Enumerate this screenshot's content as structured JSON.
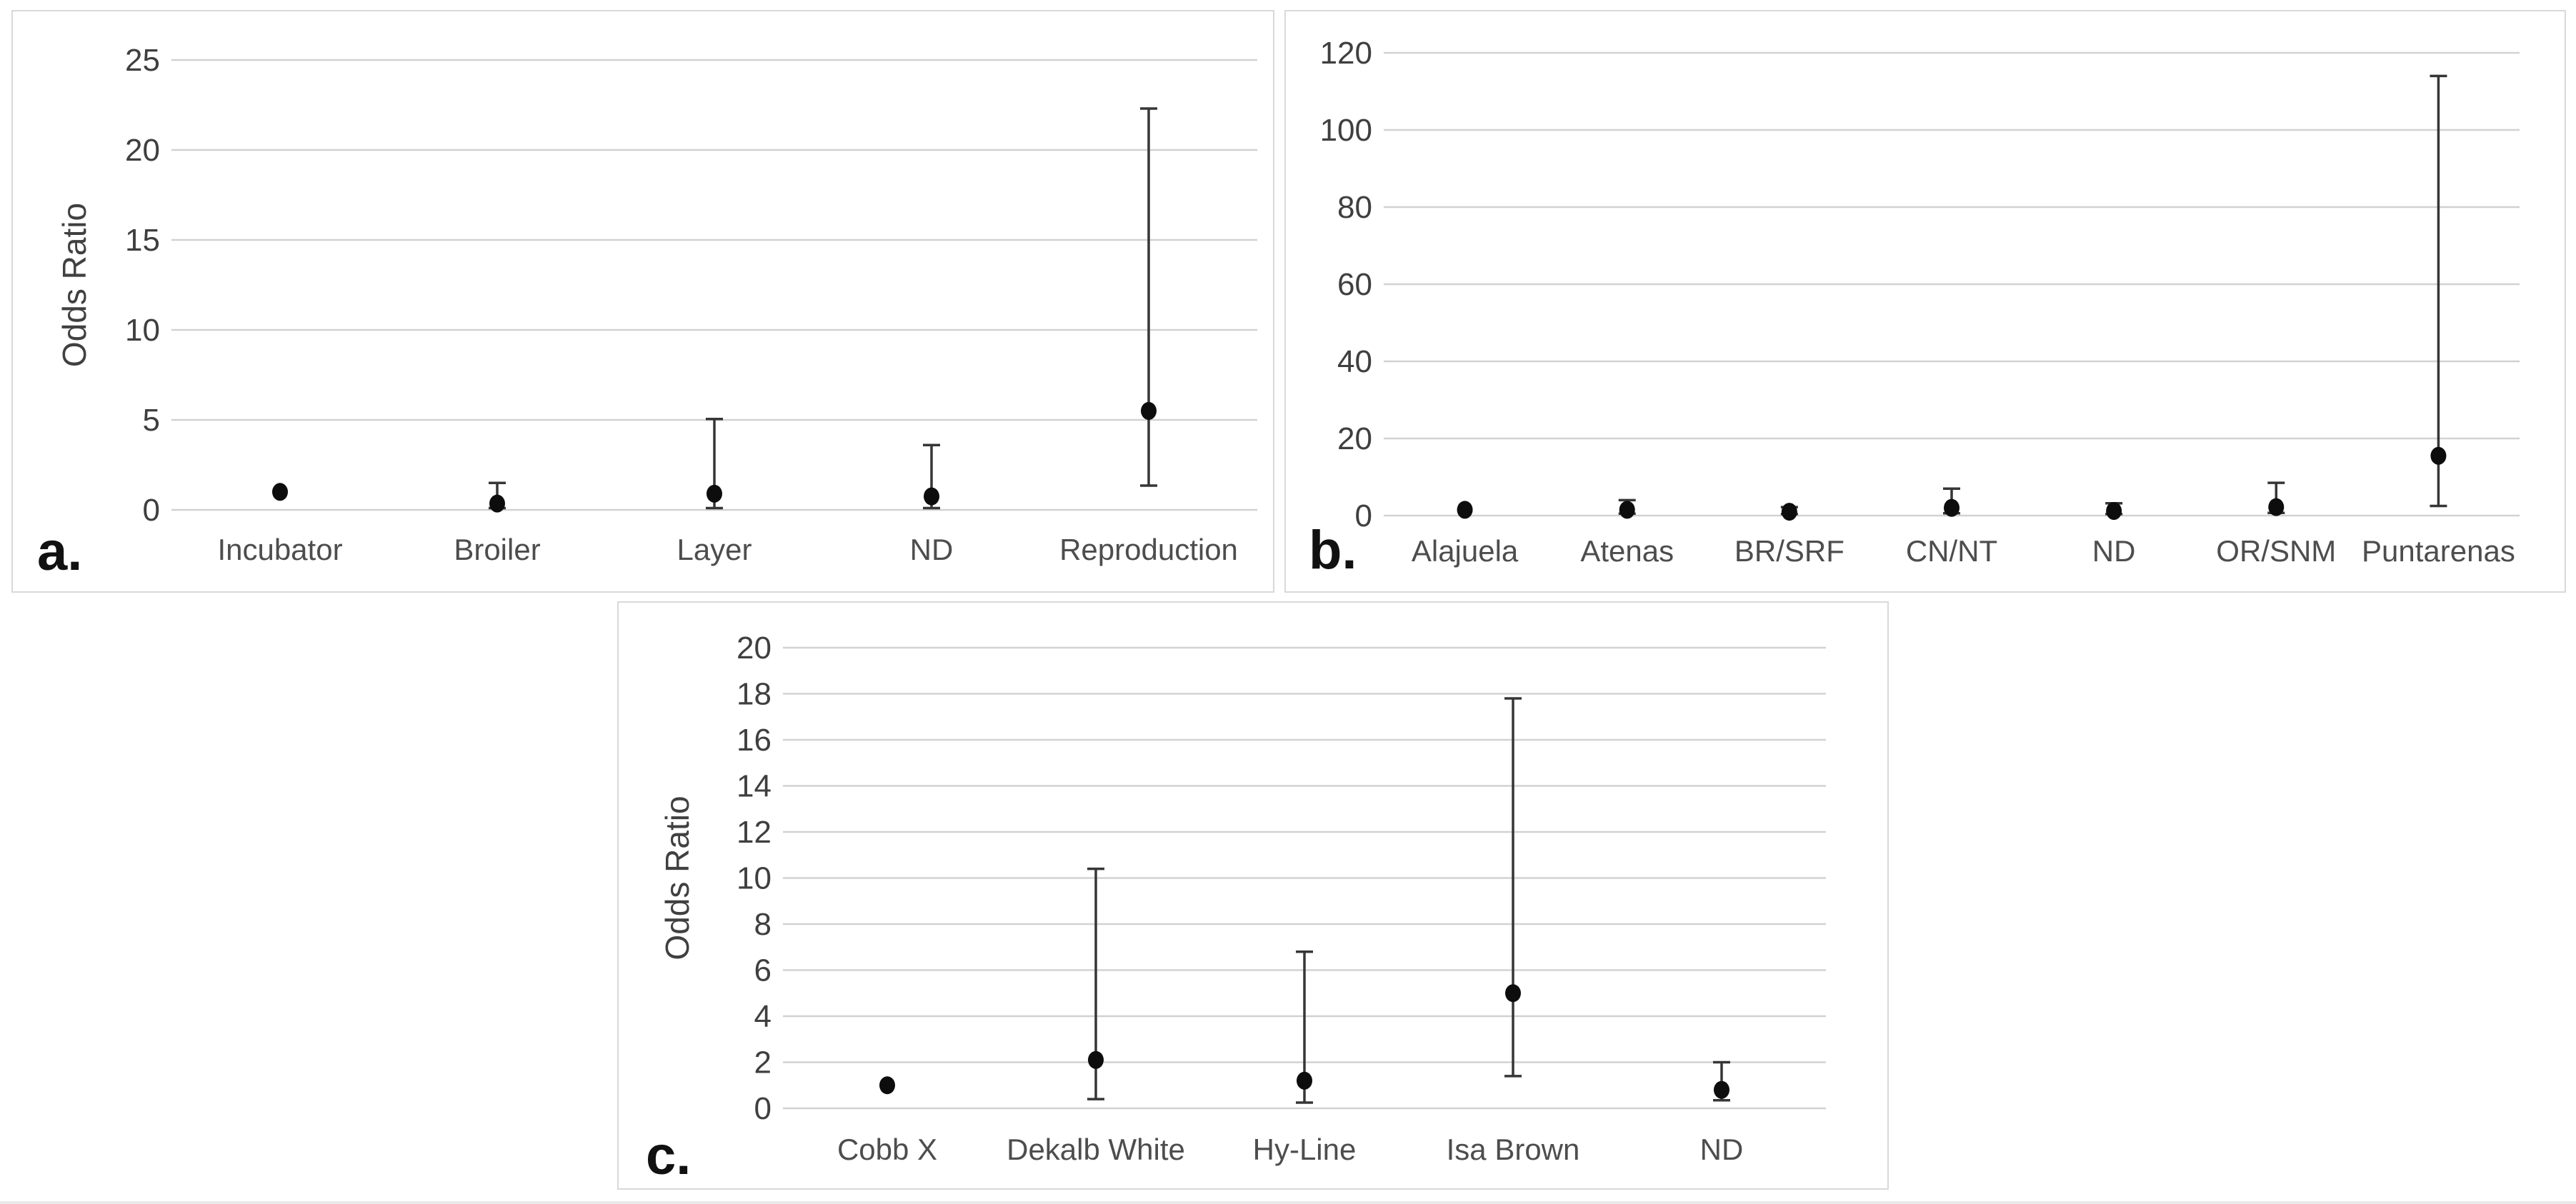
{
  "page": {
    "background_color": "#ffffff",
    "edge_color": "#eaeaea"
  },
  "colors": {
    "panel_border": "#d9d9d9",
    "gridline": "#d2d2d2",
    "tick_label": "#3f3f3f",
    "category_label": "#4d4d4d",
    "axis_title": "#404040",
    "panel_letter": "#111111",
    "marker": "#0d0d0d",
    "error_bar": "#363636"
  },
  "chart_data": [
    {
      "id": "a",
      "type": "scatter",
      "panel_letter": "a.",
      "title": "",
      "xlabel": "",
      "ylabel": "Odds Ratio",
      "ylim": [
        0,
        25
      ],
      "ytick_step": 5,
      "ytick_labels": [
        "0",
        "5",
        "10",
        "15",
        "20",
        "25"
      ],
      "grid": true,
      "legend": false,
      "categories": [
        "Incubator",
        "Broiler",
        "Layer",
        "ND",
        "Reproduction"
      ],
      "points": [
        {
          "category": "Incubator",
          "odds_ratio": 1.0,
          "ci_low": null,
          "ci_high": null
        },
        {
          "category": "Broiler",
          "odds_ratio": 0.35,
          "ci_low": 0.1,
          "ci_high": 1.5
        },
        {
          "category": "Layer",
          "odds_ratio": 0.9,
          "ci_low": 0.1,
          "ci_high": 5.05
        },
        {
          "category": "ND",
          "odds_ratio": 0.75,
          "ci_low": 0.1,
          "ci_high": 3.6
        },
        {
          "category": "Reproduction",
          "odds_ratio": 5.5,
          "ci_low": 1.35,
          "ci_high": 22.3
        }
      ]
    },
    {
      "id": "b",
      "type": "scatter",
      "panel_letter": "b.",
      "title": "",
      "xlabel": "",
      "ylabel": "",
      "ylim": [
        0,
        120
      ],
      "ytick_step": 20,
      "ytick_labels": [
        "0",
        "20",
        "40",
        "60",
        "80",
        "100",
        "120"
      ],
      "grid": true,
      "legend": false,
      "categories": [
        "Alajuela",
        "Atenas",
        "BR/SRF",
        "CN/NT",
        "ND",
        "OR/SNM",
        "Puntarenas"
      ],
      "points": [
        {
          "category": "Alajuela",
          "odds_ratio": 1.5,
          "ci_low": null,
          "ci_high": null
        },
        {
          "category": "Atenas",
          "odds_ratio": 1.5,
          "ci_low": 0.5,
          "ci_high": 4.0
        },
        {
          "category": "BR/SRF",
          "odds_ratio": 1.0,
          "ci_low": 0.4,
          "ci_high": 2.2
        },
        {
          "category": "CN/NT",
          "odds_ratio": 2.0,
          "ci_low": 0.6,
          "ci_high": 7.0
        },
        {
          "category": "ND",
          "odds_ratio": 1.2,
          "ci_low": 0.4,
          "ci_high": 3.2
        },
        {
          "category": "OR/SNM",
          "odds_ratio": 2.2,
          "ci_low": 0.7,
          "ci_high": 8.5
        },
        {
          "category": "Puntarenas",
          "odds_ratio": 15.5,
          "ci_low": 2.5,
          "ci_high": 114.0
        }
      ]
    },
    {
      "id": "c",
      "type": "scatter",
      "panel_letter": "c.",
      "title": "",
      "xlabel": "",
      "ylabel": "Odds Ratio",
      "ylim": [
        0,
        20
      ],
      "ytick_step": 2,
      "ytick_labels": [
        "0",
        "2",
        "4",
        "6",
        "8",
        "10",
        "12",
        "14",
        "16",
        "18",
        "20"
      ],
      "grid": true,
      "legend": false,
      "categories": [
        "Cobb X",
        "Dekalb White",
        "Hy-Line",
        "Isa Brown",
        "ND"
      ],
      "points": [
        {
          "category": "Cobb X",
          "odds_ratio": 1.0,
          "ci_low": null,
          "ci_high": null
        },
        {
          "category": "Dekalb White",
          "odds_ratio": 2.1,
          "ci_low": 0.4,
          "ci_high": 10.4
        },
        {
          "category": "Hy-Line",
          "odds_ratio": 1.2,
          "ci_low": 0.25,
          "ci_high": 6.8
        },
        {
          "category": "Isa Brown",
          "odds_ratio": 5.0,
          "ci_low": 1.4,
          "ci_high": 17.8
        },
        {
          "category": "ND",
          "odds_ratio": 0.8,
          "ci_low": 0.35,
          "ci_high": 2.0
        }
      ]
    }
  ]
}
